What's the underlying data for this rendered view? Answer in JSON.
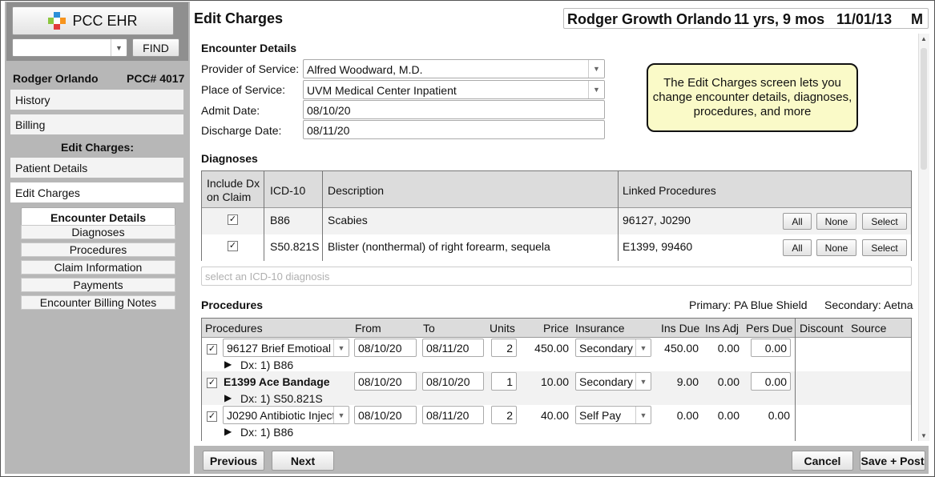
{
  "app": {
    "name": "PCC EHR",
    "find_label": "FIND",
    "search_value": ""
  },
  "patient": {
    "name": "Rodger Orlando",
    "pcc": "PCC# 4017",
    "full_name": "Rodger Growth Orlando",
    "age": "11 yrs, 9 mos",
    "dob": "11/01/13",
    "sex": "M"
  },
  "nav": {
    "history": "History",
    "billing": "Billing",
    "edit_charges_header": "Edit Charges:",
    "patient_details": "Patient Details",
    "edit_charges": "Edit Charges",
    "sub": [
      "Encounter Details",
      "Diagnoses",
      "Procedures",
      "Claim Information",
      "Payments",
      "Encounter Billing Notes"
    ]
  },
  "page": {
    "title": "Edit Charges"
  },
  "encounter": {
    "heading": "Encounter Details",
    "provider_label": "Provider of Service:",
    "provider": "Alfred Woodward, M.D.",
    "place_label": "Place of Service:",
    "place": "UVM Medical Center Inpatient",
    "admit_label": "Admit Date:",
    "admit": "08/10/20",
    "discharge_label": "Discharge Date:",
    "discharge": "08/11/20"
  },
  "callout": "The Edit Charges screen lets you change encounter details, diagnoses, procedures, and more",
  "diagnoses": {
    "heading": "Diagnoses",
    "cols": {
      "include1": "Include Dx",
      "include2": "on Claim",
      "icd": "ICD-10",
      "desc": "Description",
      "linked": "Linked Procedures"
    },
    "rows": [
      {
        "checked": "✓",
        "code": "B86",
        "desc": "Scabies",
        "linked": "96127, J0290"
      },
      {
        "checked": "✓",
        "code": "S50.821S",
        "desc": "Blister (nonthermal) of right forearm, sequela",
        "linked": "E1399, 99460"
      }
    ],
    "btn_all": "All",
    "btn_none": "None",
    "btn_select": "Select",
    "search_placeholder": "select an ICD-10 diagnosis"
  },
  "procedures": {
    "heading": "Procedures",
    "primary": "Primary: PA Blue Shield",
    "secondary": "Secondary: Aetna",
    "cols": {
      "proc": "Procedures",
      "from": "From",
      "to": "To",
      "units": "Units",
      "price": "Price",
      "insurance": "Insurance",
      "ins_due": "Ins Due",
      "ins_adj": "Ins Adj",
      "pers_due": "Pers Due",
      "discount": "Discount",
      "source": "Source"
    },
    "rows": [
      {
        "checked": "✓",
        "proc": "96127 Brief Emotioal",
        "from": "08/10/20",
        "to": "08/11/20",
        "units": "2",
        "price": "450.00",
        "insurance": "Secondary",
        "ins_due": "450.00",
        "ins_adj": "0.00",
        "pers_due": "0.00",
        "dx": "Dx:  1) B86"
      },
      {
        "checked": "✓",
        "proc": "E1399 Ace Bandage",
        "from": "08/10/20",
        "to": "08/10/20",
        "units": "1",
        "price": "10.00",
        "insurance": "Secondary",
        "ins_due": "9.00",
        "ins_adj": "0.00",
        "pers_due": "0.00",
        "dx": "Dx:  1) S50.821S"
      },
      {
        "checked": "✓",
        "proc": "J0290 Antibiotic Inject",
        "from": "08/10/20",
        "to": "08/11/20",
        "units": "2",
        "price": "40.00",
        "insurance": "Self Pay",
        "ins_due": "0.00",
        "ins_adj": "0.00",
        "pers_due": "0.00",
        "dx": "Dx:  1) B86"
      }
    ]
  },
  "footer": {
    "previous": "Previous",
    "next": "Next",
    "cancel": "Cancel",
    "save_post": "Save + Post"
  }
}
